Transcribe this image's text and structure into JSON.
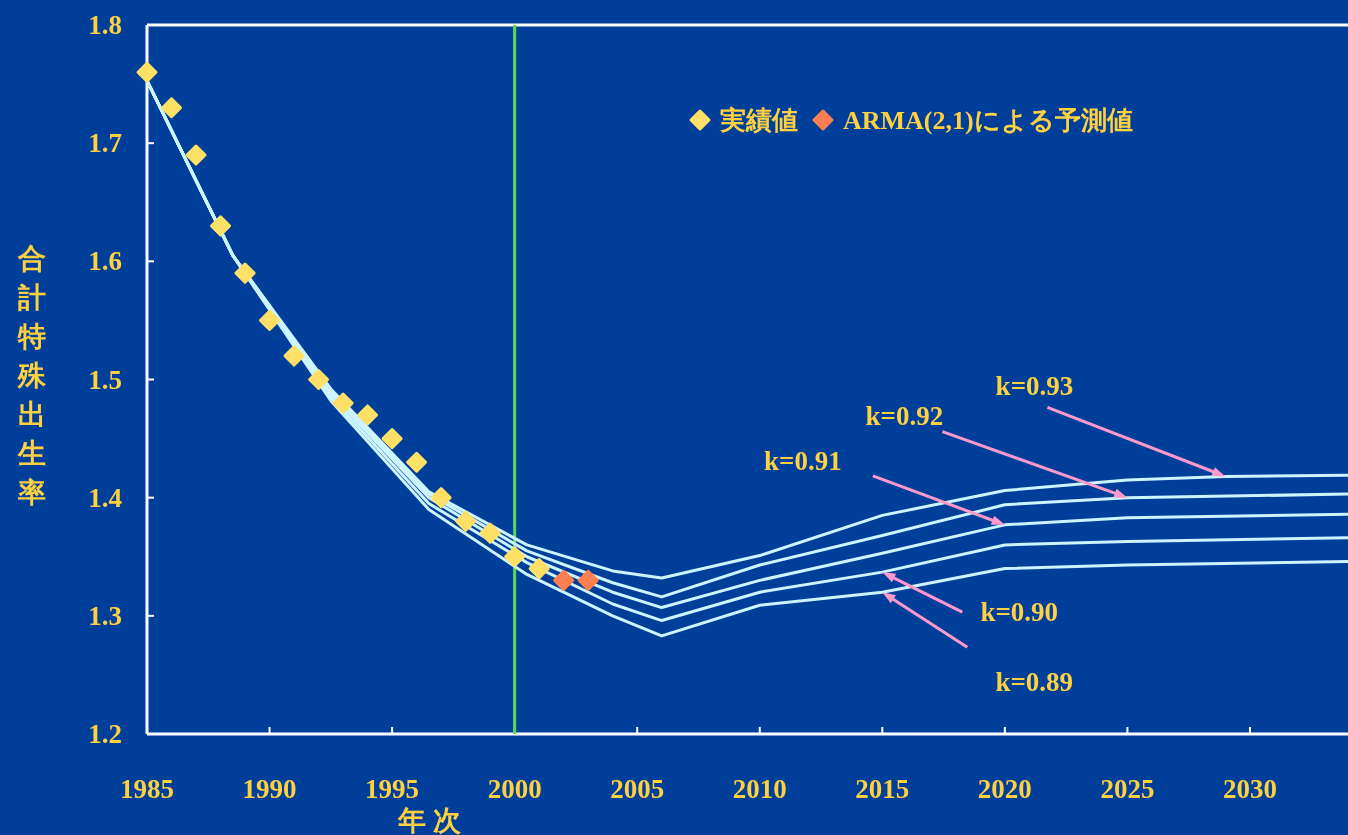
{
  "chart_data": {
    "type": "line",
    "xlabel": "年 次",
    "ylabel": "合計特殊出生率",
    "xlim": [
      1985,
      2034
    ],
    "ylim": [
      1.2,
      1.8
    ],
    "xticks": [
      1985,
      1990,
      1995,
      2000,
      2005,
      2010,
      2015,
      2020,
      2025,
      2030
    ],
    "yticks": [
      1.2,
      1.3,
      1.4,
      1.5,
      1.6,
      1.7,
      1.8
    ],
    "legend": "top right",
    "line_style": "solid",
    "ref_lines": [
      {
        "axis": "x",
        "value": 2000,
        "color": "#55dd55"
      }
    ],
    "series": [
      {
        "color": "#ccf5ff",
        "marker": "none",
        "x": [
          1985,
          1988.5,
          1992.5,
          1996.5,
          2000.5,
          2004,
          2006,
          2010,
          2015,
          2020,
          2025,
          2029,
          2034
        ],
        "values": [
          1.753,
          1.605,
          1.492,
          1.405,
          1.36,
          1.338,
          1.332,
          1.351,
          1.385,
          1.406,
          1.415,
          1.418,
          1.419
        ]
      },
      {
        "color": "#ccf5ff",
        "marker": "none",
        "x": [
          1985,
          1988.5,
          1992.5,
          1996.5,
          2000.5,
          2004,
          2006,
          2010,
          2015,
          2020,
          2025,
          2034
        ],
        "values": [
          1.753,
          1.605,
          1.49,
          1.403,
          1.355,
          1.328,
          1.316,
          1.343,
          1.368,
          1.394,
          1.4,
          1.403
        ]
      },
      {
        "color": "#ccf5ff",
        "marker": "none",
        "x": [
          1985,
          1988.5,
          1992.5,
          1996.5,
          2000.5,
          2004,
          2006,
          2010,
          2015,
          2020,
          2025,
          2034
        ],
        "values": [
          1.753,
          1.605,
          1.488,
          1.4,
          1.35,
          1.32,
          1.307,
          1.33,
          1.353,
          1.377,
          1.383,
          1.386
        ]
      },
      {
        "color": "#ccf5ff",
        "marker": "none",
        "x": [
          1985,
          1988.5,
          1992.5,
          1996.5,
          2000.5,
          2004,
          2006,
          2010,
          2015,
          2020,
          2025,
          2034
        ],
        "values": [
          1.753,
          1.605,
          1.485,
          1.395,
          1.345,
          1.31,
          1.296,
          1.32,
          1.337,
          1.36,
          1.363,
          1.366
        ]
      },
      {
        "color": "#ccf5ff",
        "marker": "none",
        "x": [
          1985,
          1988.5,
          1992.5,
          1996.5,
          2000.5,
          2004,
          2006,
          2010,
          2015,
          2020,
          2025,
          2034
        ],
        "values": [
          1.753,
          1.605,
          1.482,
          1.39,
          1.335,
          1.3,
          1.283,
          1.309,
          1.32,
          1.34,
          1.343,
          1.346
        ]
      },
      {
        "type": "scatter",
        "name": "実績値",
        "color": "#ffe066",
        "marker": "diamond",
        "x": [
          1985,
          1986,
          1987,
          1988,
          1989,
          1990,
          1991,
          1992,
          1993,
          1994,
          1995,
          1996,
          1997,
          1998,
          1999,
          2000,
          2001
        ],
        "values": [
          1.76,
          1.73,
          1.69,
          1.63,
          1.59,
          1.55,
          1.52,
          1.5,
          1.48,
          1.47,
          1.45,
          1.43,
          1.4,
          1.38,
          1.37,
          1.35,
          1.34
        ]
      },
      {
        "type": "scatter",
        "name": "ARMA(2,1)による予測値",
        "color": "#ff7f50",
        "marker": "diamond",
        "x": [
          2002,
          2003
        ],
        "values": [
          1.33,
          1.33
        ]
      }
    ],
    "annotations": [
      {
        "text": "k=0.93",
        "x": 2029,
        "y": 1.418
      },
      {
        "text": "k=0.92",
        "x": 2025,
        "y": 1.4
      },
      {
        "text": "k=0.91",
        "x": 2020,
        "y": 1.377
      },
      {
        "text": "k=0.90",
        "x": 2015,
        "y": 1.337
      },
      {
        "text": "k=0.89",
        "x": 2015,
        "y": 1.32
      }
    ]
  }
}
